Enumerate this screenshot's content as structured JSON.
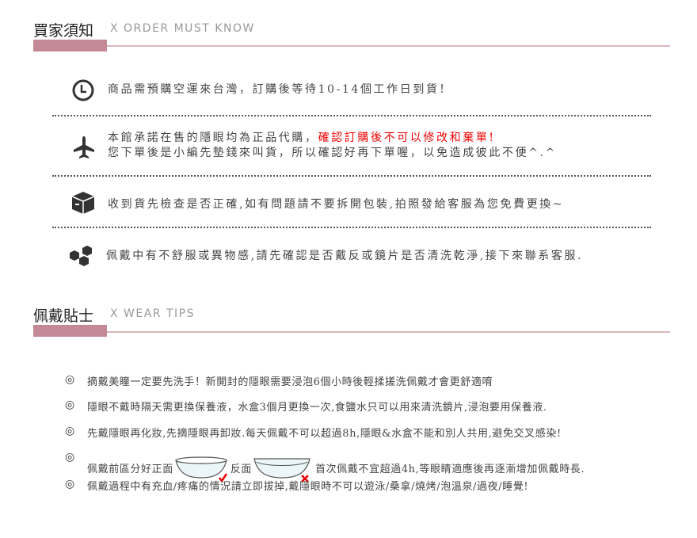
{
  "order_section": {
    "title": "買家須知",
    "subtitle": "X  ORDER MUST KNOW",
    "items": [
      {
        "icon": "clock-icon",
        "text": "商品需預購空運來台灣，訂購後等待10-14個工作日到貨！"
      },
      {
        "icon": "airplane-icon",
        "text1": "本館承諾在售的隱眼均為正品代購，",
        "text1_red": "確認訂購後不可以修改和棄單!",
        "text2": "您下單後是小編先墊錢來叫貨，所以確認好再下單喔，以免造成彼此不便^.^"
      },
      {
        "icon": "box-icon",
        "text": "收到貨先檢查是否正確,如有問題請不要拆開包裝,拍照發給客服為您免費更換~"
      },
      {
        "icon": "cubes-icon",
        "text": "佩戴中有不舒服或異物感,請先確認是否戴反或鏡片是否清洗乾淨,接下來聯系客服."
      }
    ]
  },
  "wear_section": {
    "title": "佩戴貼士",
    "subtitle": "X  WEAR TIPS",
    "bullet": "◎",
    "tips": [
      "摘戴美瞳一定要先洗手！新開封的隱眼需要浸泡6個小時後輕揉搓洗佩戴才會更舒適唷",
      "隱眼不戴時隔天需更換保養液，水盒3個月更換一次,食鹽水只可以用來清洗鏡片,浸泡要用保養液.",
      "先戴隱眼再化妝,先摘隱眼再卸妝.每天佩戴不可以超過8h,隱眼&水盒不能和別人共用,避免交叉感染!",
      {
        "a": "佩戴前區分好正面",
        "b": "反面",
        "c": "首次佩戴不宜超過4h,等眼睛適應後再逐漸增加佩戴時長."
      },
      "佩戴過程中有充血/疼痛的情況請立即拔掉,戴隱眼時不可以遊泳/桑拿/燒烤/泡溫泉/過夜/睡覺!"
    ]
  },
  "colors": {
    "accent": "#c38995",
    "line": "#ddb5ba",
    "warning": "#e00000"
  }
}
